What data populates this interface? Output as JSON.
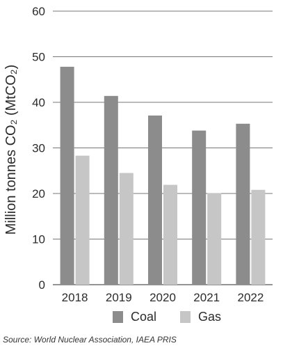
{
  "chart_data": {
    "type": "bar",
    "categories": [
      "2018",
      "2019",
      "2020",
      "2021",
      "2022"
    ],
    "series": [
      {
        "name": "Coal",
        "values": [
          47.8,
          41.4,
          37.1,
          33.8,
          35.3
        ],
        "color": "#8c8c8c"
      },
      {
        "name": "Gas",
        "values": [
          28.3,
          24.5,
          21.9,
          20.1,
          20.8
        ],
        "color": "#c6c6c6"
      }
    ],
    "ylabel": "Million tonnes CO₂ (MtCO₂)",
    "ylim": [
      0,
      60
    ],
    "yticks": [
      "0",
      "10",
      "20",
      "30",
      "40",
      "50",
      "60"
    ],
    "grid": "horizontal",
    "legend": "bottom"
  },
  "source": "Source: World Nuclear Association, IAEA PRIS"
}
